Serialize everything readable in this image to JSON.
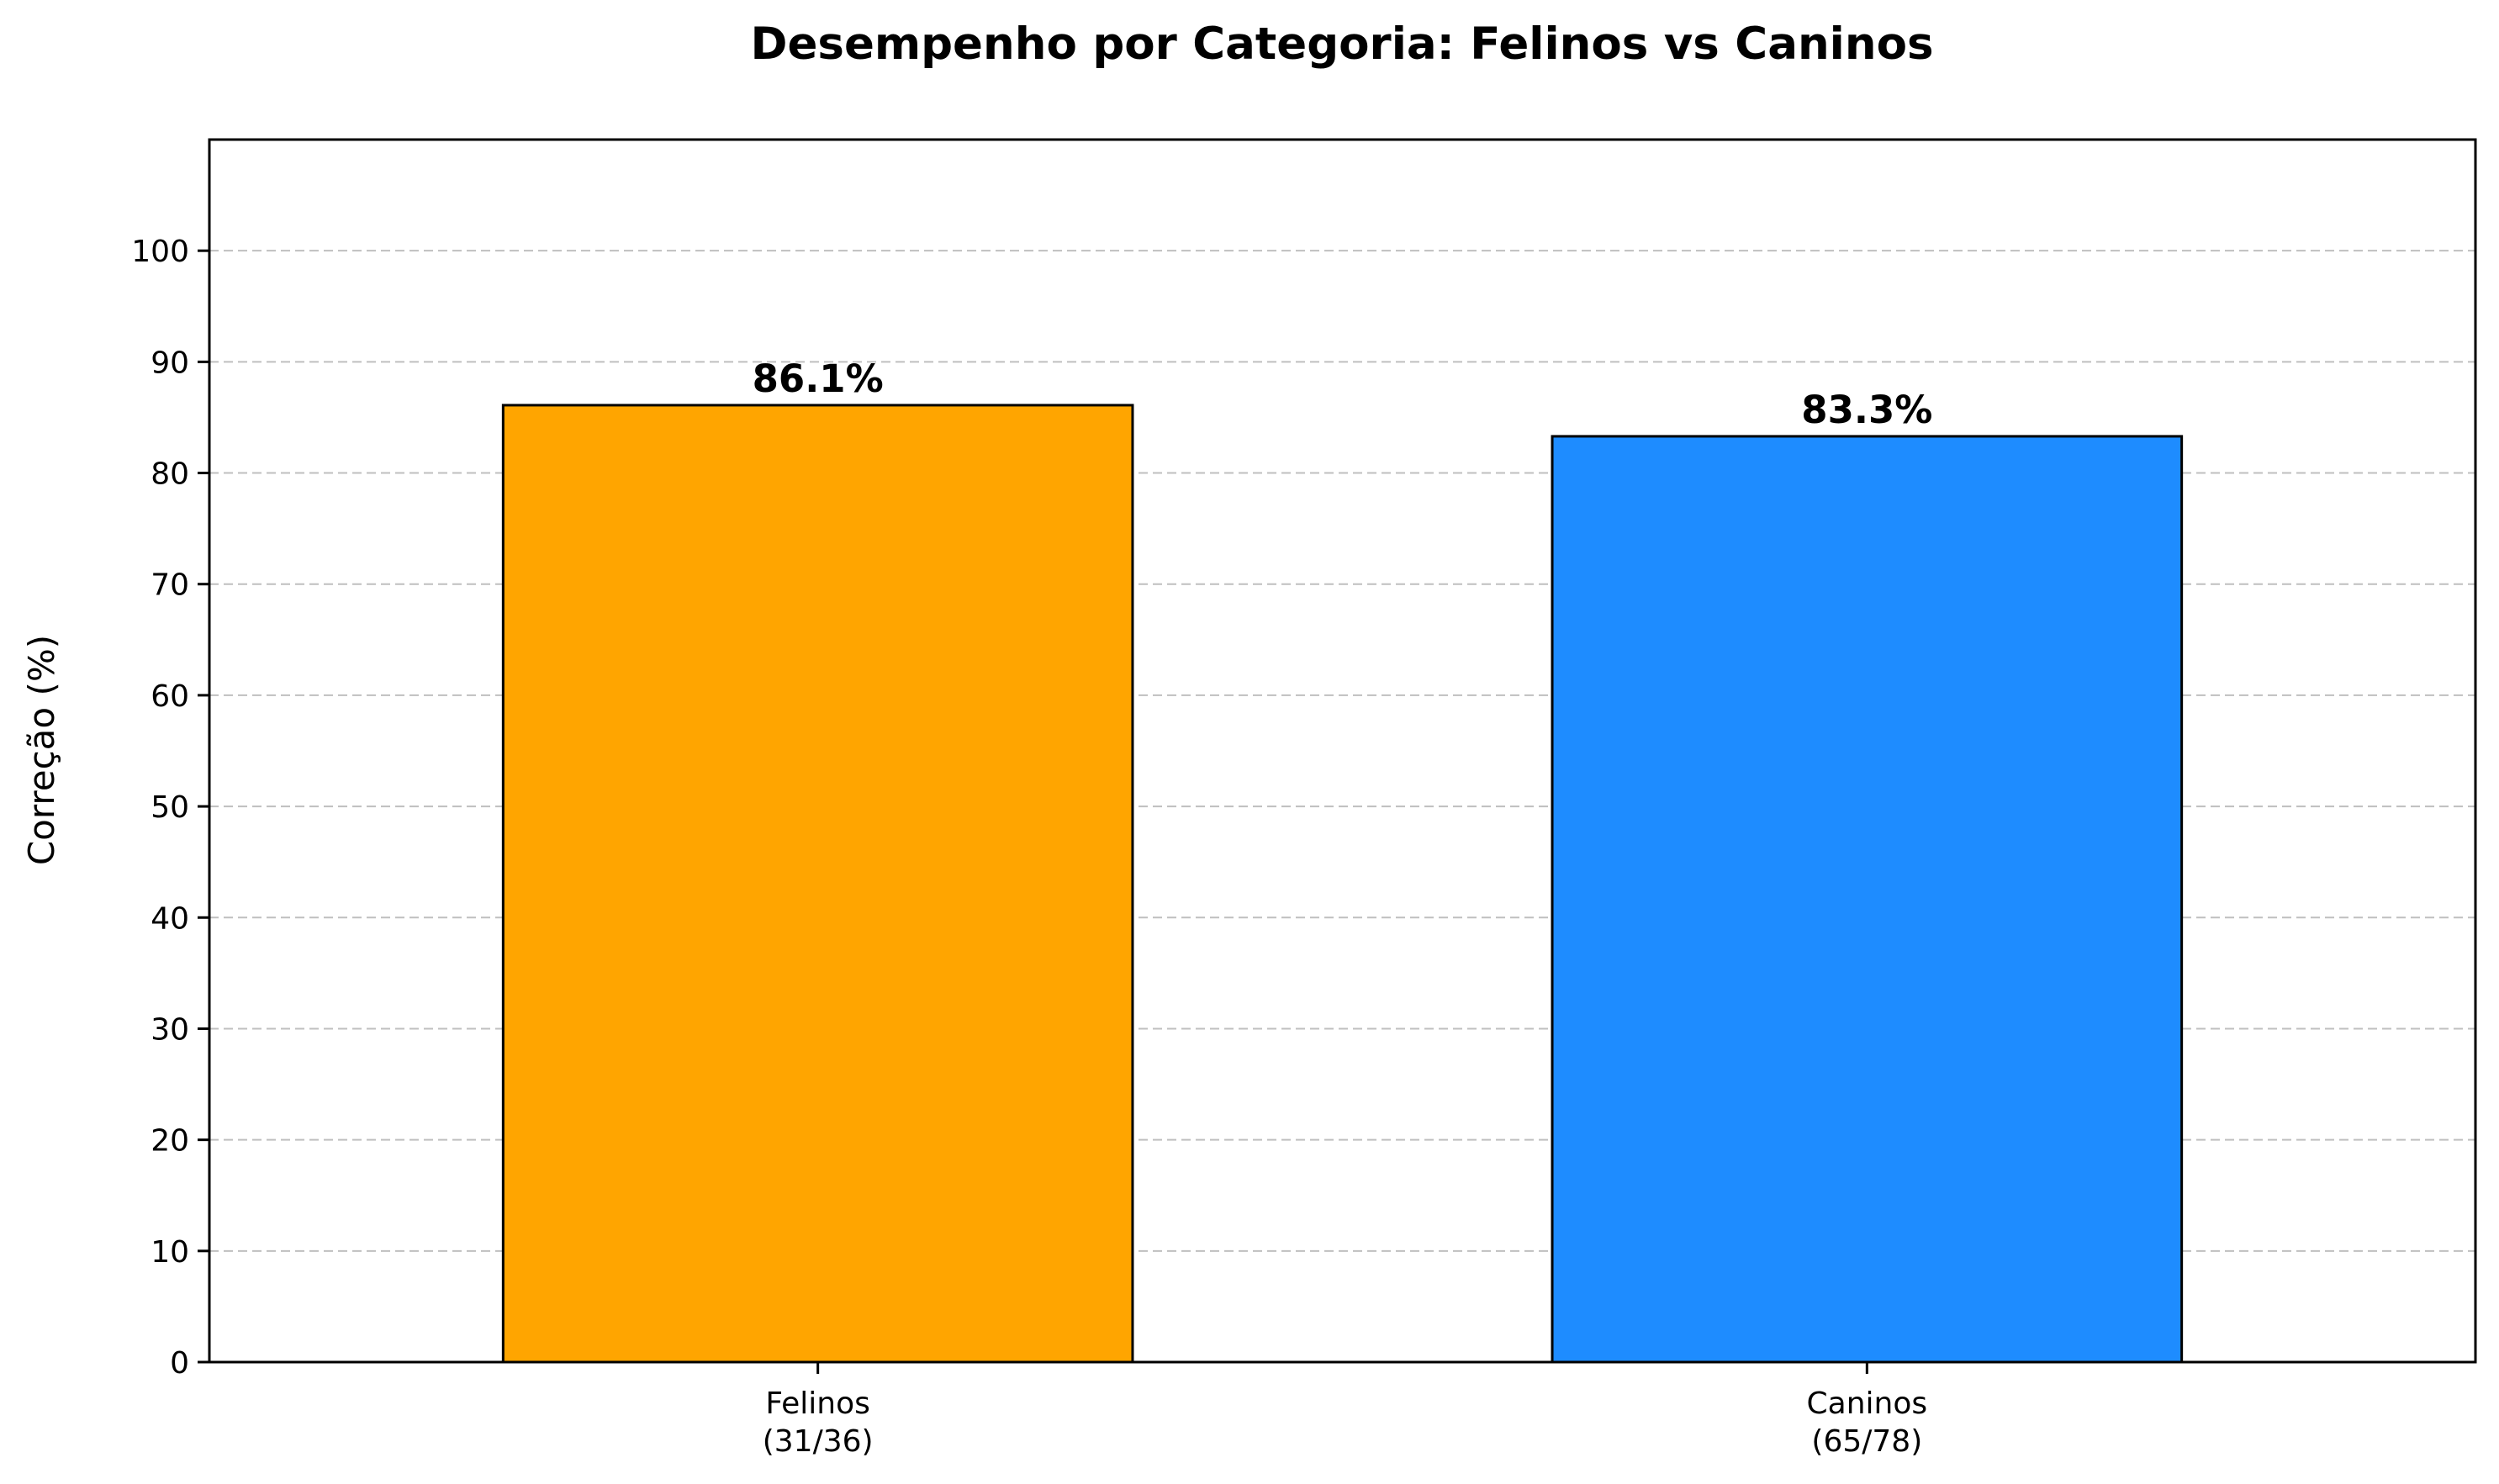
{
  "chart_data": {
    "type": "bar",
    "title": "Desempenho por Categoria: Felinos vs Caninos",
    "xlabel": "",
    "ylabel": "Correção (%)",
    "ylim": [
      0,
      110
    ],
    "yticks": [
      0,
      10,
      20,
      30,
      40,
      50,
      60,
      70,
      80,
      90,
      100
    ],
    "grid": "y-dashed",
    "categories": [
      "Felinos",
      "Caninos"
    ],
    "category_counts": [
      "(31/36)",
      "(65/78)"
    ],
    "values": [
      86.1,
      83.3
    ],
    "value_labels": [
      "86.1%",
      "83.3%"
    ],
    "colors": [
      "#FFA500",
      "#1E8CFF"
    ],
    "edge_color": "#000000"
  }
}
